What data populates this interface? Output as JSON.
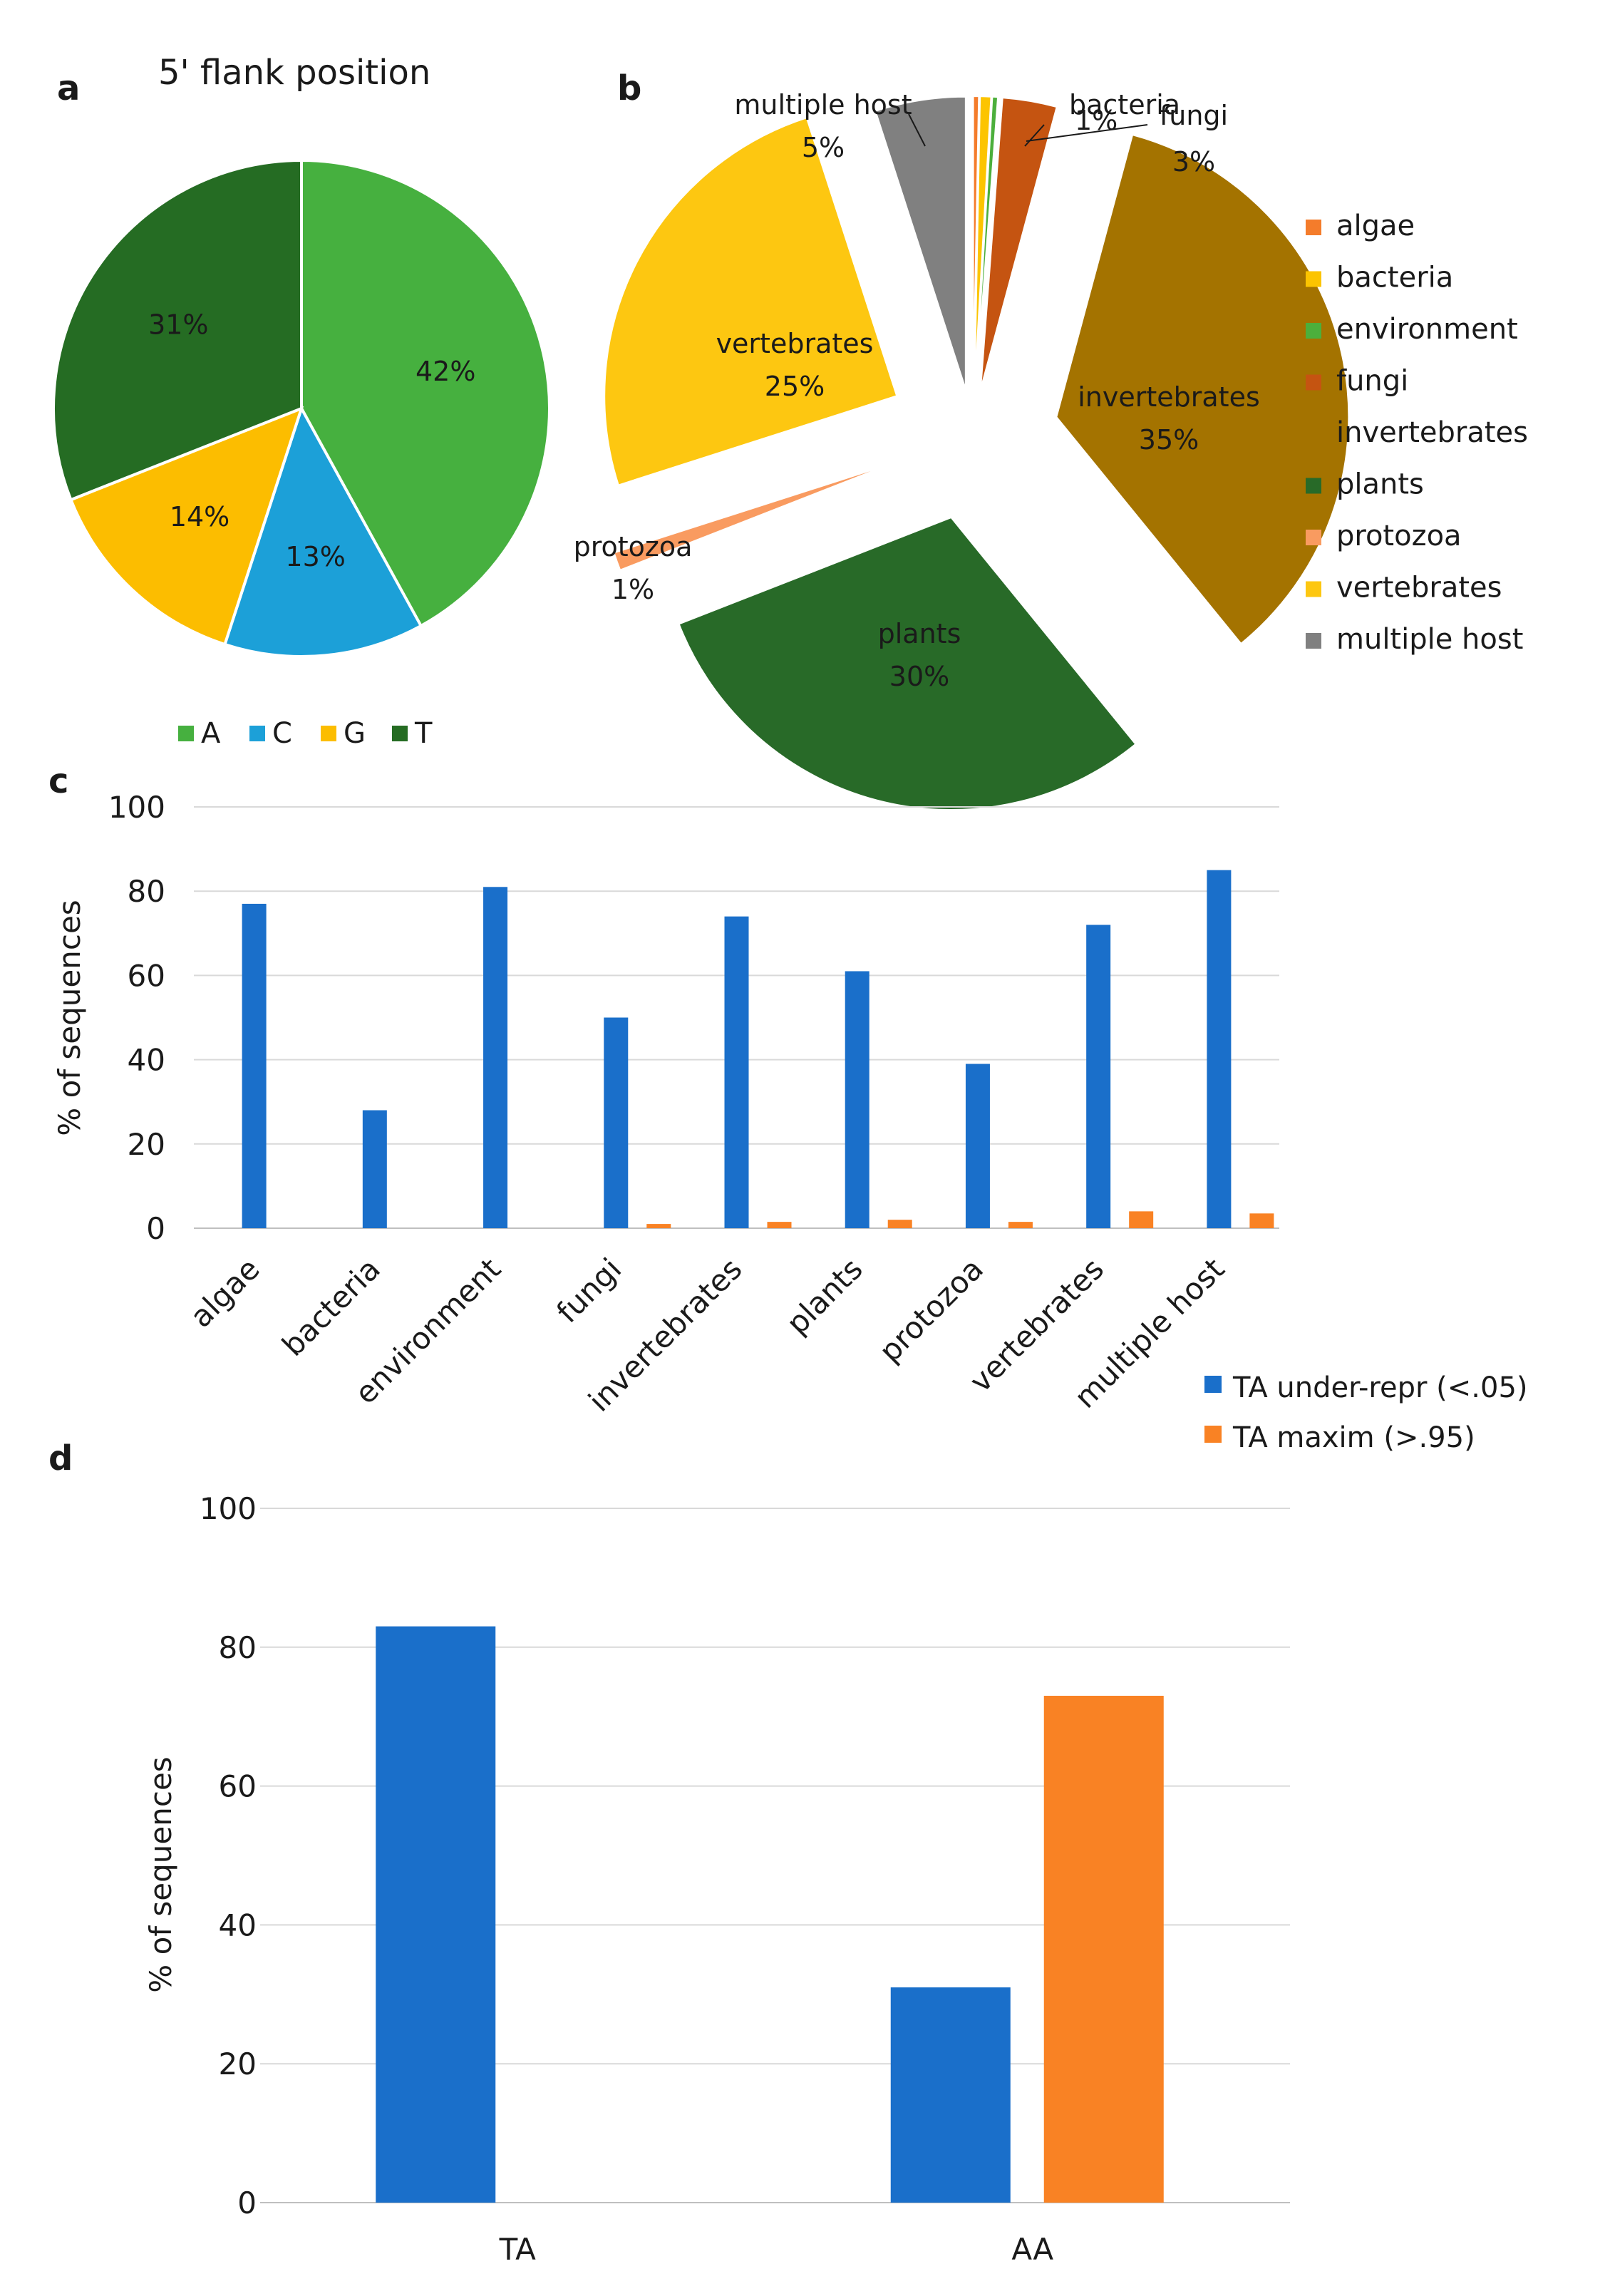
{
  "chart_data": [
    {
      "panel": "a",
      "type": "pie",
      "title": "5' flank position",
      "categories": [
        "A",
        "C",
        "G",
        "T"
      ],
      "values": [
        42,
        13,
        14,
        31
      ],
      "labels": [
        "42%",
        "13%",
        "14%",
        "31%"
      ],
      "colors": [
        "#46b03f",
        "#1ca0d8",
        "#fcbd00",
        "#256c23"
      ],
      "legend": "bottom"
    },
    {
      "panel": "b",
      "type": "pie",
      "title": "",
      "categories": [
        "algae",
        "bacteria",
        "environment",
        "fungi",
        "invertebrates",
        "plants",
        "protozoa",
        "vertebrates",
        "multiple host"
      ],
      "values": [
        0.3,
        0.6,
        0.3,
        3,
        35,
        30,
        1,
        25,
        5
      ],
      "slice_labels": [
        {
          "category": "bacteria",
          "name": "bacteria",
          "pct": "1%"
        },
        {
          "category": "fungi",
          "name": "fungi",
          "pct": "3%"
        },
        {
          "category": "invertebrates",
          "name": "invertebrates",
          "pct": "35%"
        },
        {
          "category": "plants",
          "name": "plants",
          "pct": "30%"
        },
        {
          "category": "protozoa",
          "name": "protozoa",
          "pct": "1%"
        },
        {
          "category": "vertebrates",
          "name": "vertebrates",
          "pct": "25%"
        },
        {
          "category": "multiple host",
          "name": "multiple host",
          "pct": "5%"
        }
      ],
      "colors": [
        "#f47c2b",
        "#fcc400",
        "#4caf3c",
        "#c55411",
        "#a47300",
        "#286a28",
        "#f99b60",
        "#fdc711",
        "#808080"
      ],
      "legend": "right"
    },
    {
      "panel": "c",
      "type": "bar",
      "categories": [
        "algae",
        "bacteria",
        "environment",
        "fungi",
        "invertebrates",
        "plants",
        "protozoa",
        "vertebrates",
        "multiple host"
      ],
      "series": [
        {
          "name": "TA under-repr (<.05)",
          "color": "#1a6fca",
          "values": [
            77,
            28,
            81,
            50,
            74,
            61,
            39,
            72,
            85
          ]
        },
        {
          "name": "TA maxim (>.95)",
          "color": "#f98224",
          "values": [
            0,
            0,
            0,
            1,
            1.5,
            2,
            1.5,
            4,
            3.5
          ]
        }
      ],
      "ylabel": "% of sequences",
      "ylim": [
        0,
        100
      ],
      "yticks": [
        "0",
        "20",
        "40",
        "60",
        "80",
        "100"
      ],
      "legend": "bottom-right"
    },
    {
      "panel": "d",
      "type": "bar",
      "categories": [
        "TA",
        "AA"
      ],
      "series": [
        {
          "name": "TA under-repr (<.05)",
          "color": "#1a6fca",
          "values": [
            83,
            31
          ]
        },
        {
          "name": "TA maxim (>.95)",
          "color": "#f98224",
          "values": [
            0,
            73
          ]
        }
      ],
      "ylabel": "% of sequences",
      "ylim": [
        0,
        100
      ],
      "yticks": [
        "0",
        "20",
        "40",
        "60",
        "80",
        "100"
      ]
    }
  ]
}
